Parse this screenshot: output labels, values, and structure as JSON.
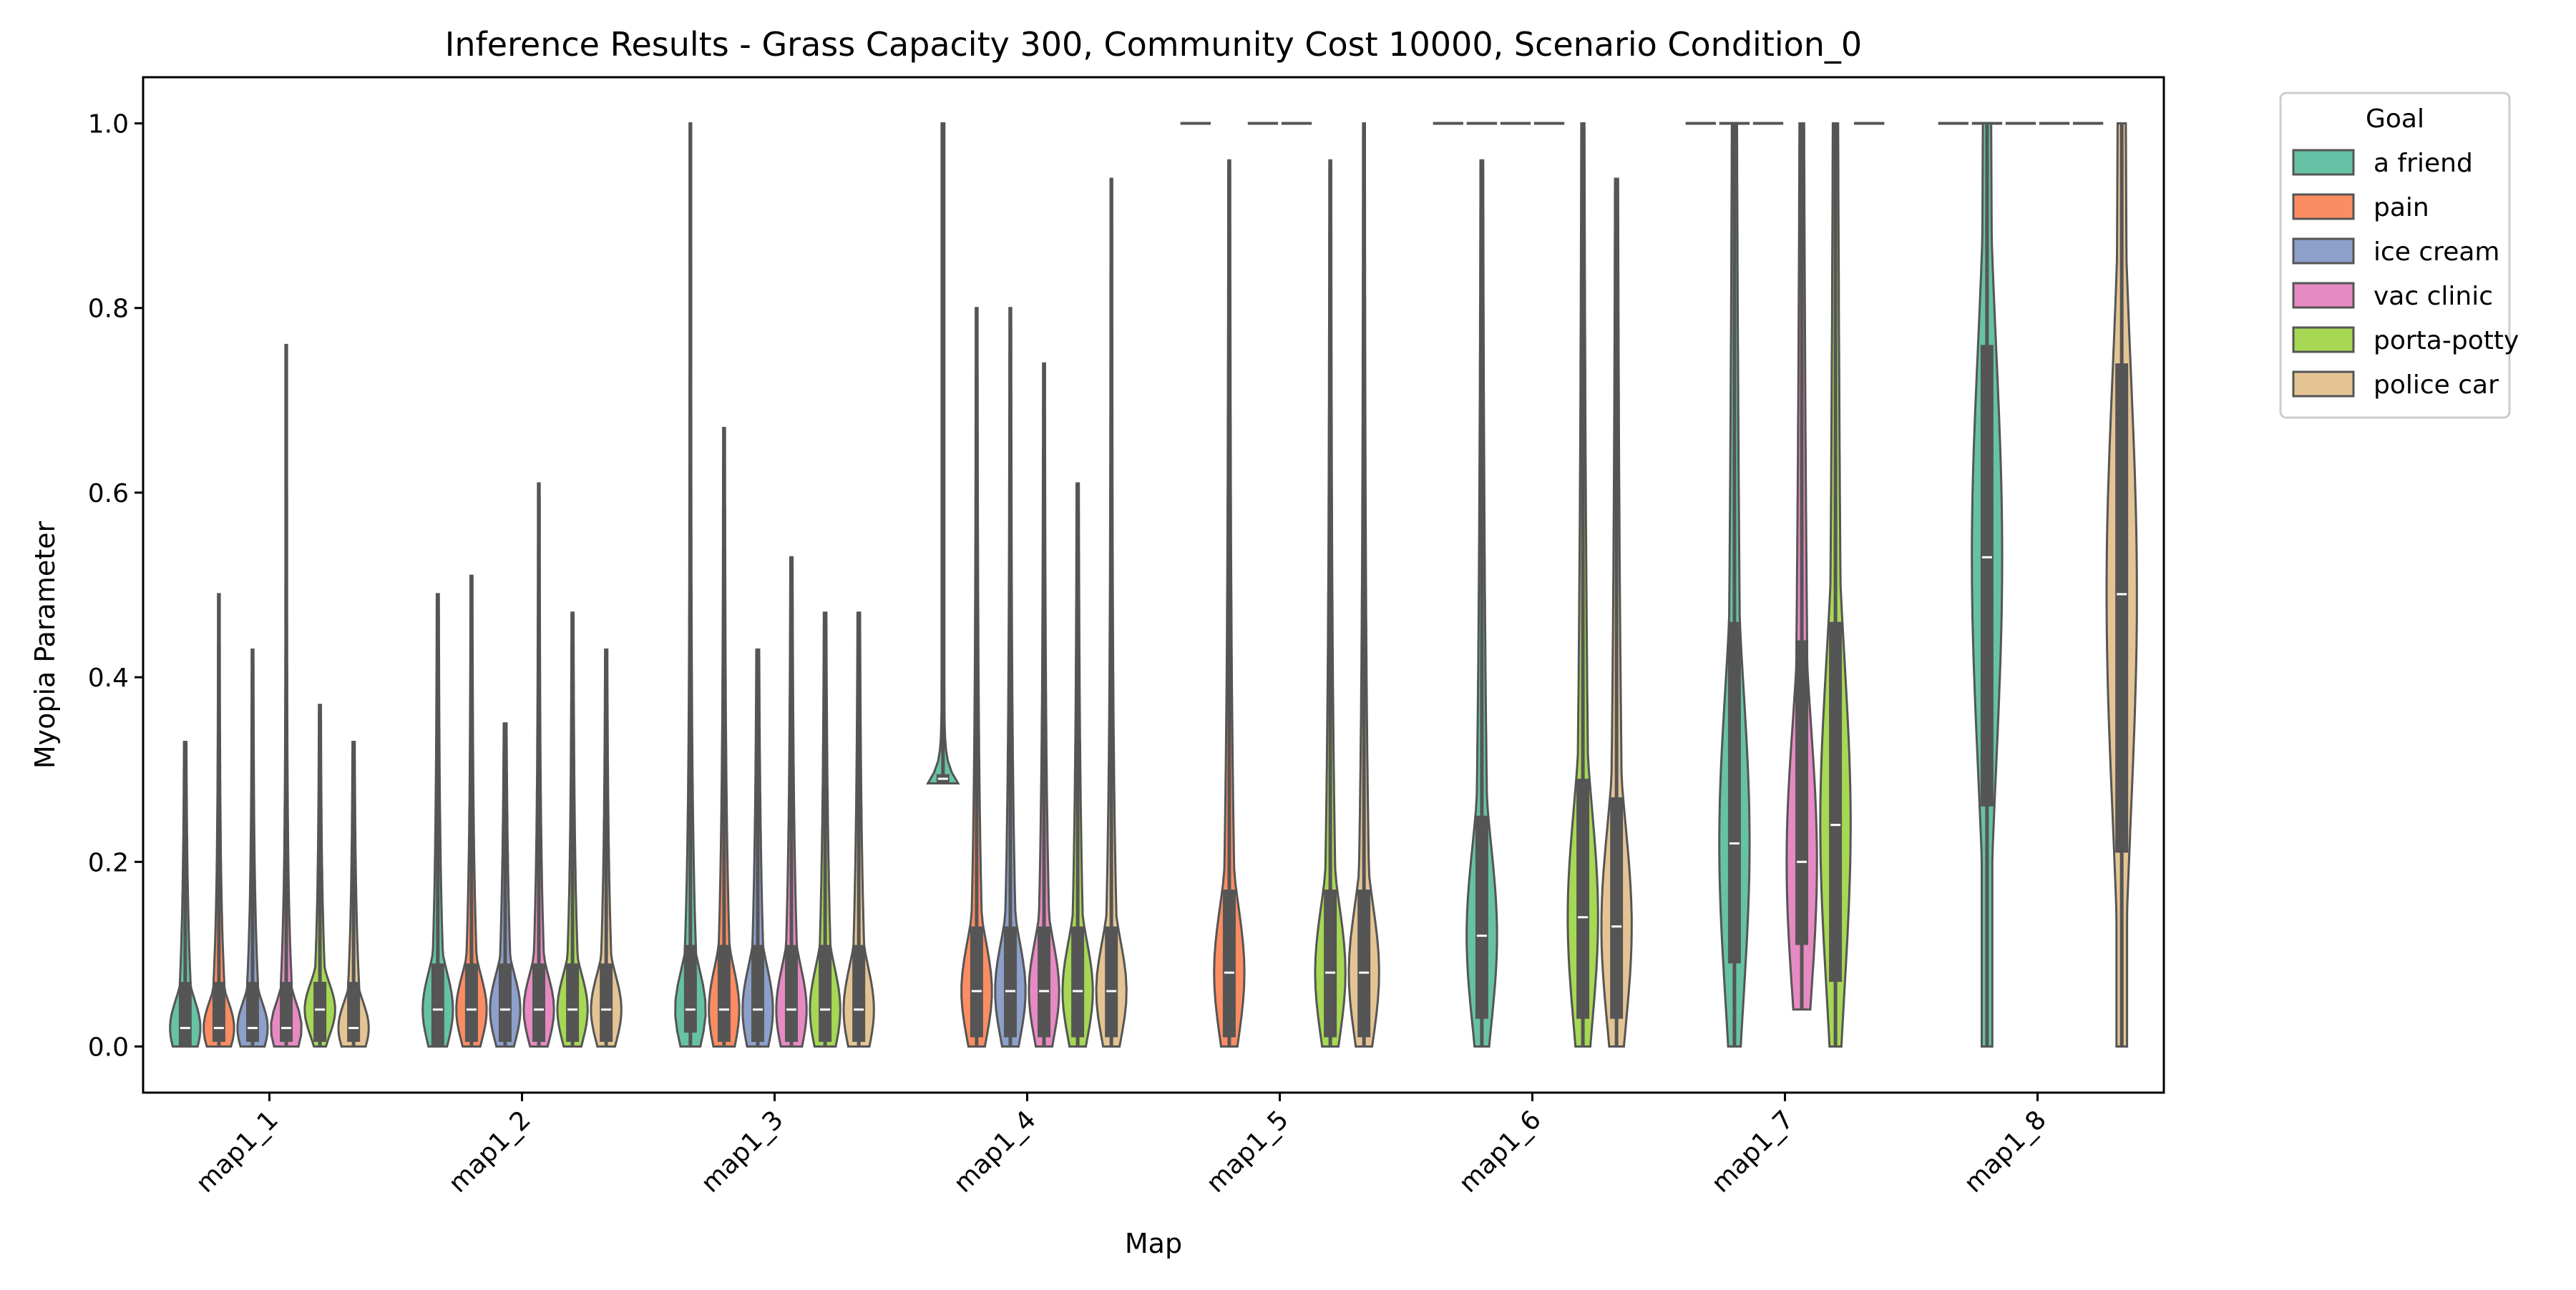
{
  "chart_data": {
    "type": "violin",
    "title": "Inference Results - Grass Capacity 300, Community Cost 10000, Scenario Condition_0",
    "xlabel": "Map",
    "ylabel": "Myopia Parameter",
    "ylim": [
      -0.05,
      1.05
    ],
    "yticks": [
      0.0,
      0.2,
      0.4,
      0.6,
      0.8,
      1.0
    ],
    "ytick_labels": [
      "0.0",
      "0.2",
      "0.4",
      "0.6",
      "0.8",
      "1.0"
    ],
    "categories": [
      "map1_1",
      "map1_2",
      "map1_3",
      "map1_4",
      "map1_5",
      "map1_6",
      "map1_7",
      "map1_8"
    ],
    "grid": false,
    "legend": {
      "title": "Goal",
      "placement": "outside-top-right",
      "entries": [
        "a friend",
        "pain",
        "ice cream",
        "vac clinic",
        "porta-potty",
        "police car"
      ]
    },
    "colors": {
      "a friend": "#66c2a5",
      "pain": "#fc8d62",
      "ice cream": "#8da0cb",
      "vac clinic": "#e78ac3",
      "porta-potty": "#a6d854",
      "police car": "#e5c494",
      "body": "#555555",
      "median": "#ffffff"
    },
    "series": [
      {
        "name": "a friend",
        "values": [
          {
            "min": 0.0,
            "q1": 0.0,
            "median": 0.02,
            "q3": 0.07,
            "max": 0.33
          },
          {
            "min": 0.0,
            "q1": 0.0,
            "median": 0.04,
            "q3": 0.09,
            "max": 0.49
          },
          {
            "min": 0.0,
            "q1": 0.015,
            "median": 0.04,
            "q3": 0.11,
            "max": 1.0
          },
          {
            "min": 0.285,
            "q1": 0.285,
            "median": 0.29,
            "q3": 0.295,
            "max": 1.0
          },
          {
            "min": 1.0,
            "q1": 1.0,
            "median": 1.0,
            "q3": 1.0,
            "max": 1.0
          },
          {
            "min": 1.0,
            "q1": 1.0,
            "median": 1.0,
            "q3": 1.0,
            "max": 1.0
          },
          {
            "min": 1.0,
            "q1": 1.0,
            "median": 1.0,
            "q3": 1.0,
            "max": 1.0
          },
          {
            "min": 1.0,
            "q1": 1.0,
            "median": 1.0,
            "q3": 1.0,
            "max": 1.0
          }
        ]
      },
      {
        "name": "pain",
        "values": [
          {
            "min": 0.0,
            "q1": 0.005,
            "median": 0.02,
            "q3": 0.07,
            "max": 0.49
          },
          {
            "min": 0.0,
            "q1": 0.005,
            "median": 0.04,
            "q3": 0.09,
            "max": 0.51
          },
          {
            "min": 0.0,
            "q1": 0.005,
            "median": 0.04,
            "q3": 0.11,
            "max": 0.67
          },
          {
            "min": 0.0,
            "q1": 0.01,
            "median": 0.06,
            "q3": 0.13,
            "max": 0.8
          },
          {
            "min": 0.0,
            "q1": 0.01,
            "median": 0.08,
            "q3": 0.17,
            "max": 0.96
          },
          {
            "min": 1.0,
            "q1": 1.0,
            "median": 1.0,
            "q3": 1.0,
            "max": 1.0
          },
          {
            "min": 1.0,
            "q1": 1.0,
            "median": 1.0,
            "q3": 1.0,
            "max": 1.0
          },
          {
            "min": 1.0,
            "q1": 1.0,
            "median": 1.0,
            "q3": 1.0,
            "max": 1.0
          }
        ]
      },
      {
        "name": "ice cream",
        "values": [
          {
            "min": 0.0,
            "q1": 0.005,
            "median": 0.02,
            "q3": 0.07,
            "max": 0.43
          },
          {
            "min": 0.0,
            "q1": 0.005,
            "median": 0.04,
            "q3": 0.09,
            "max": 0.35
          },
          {
            "min": 0.0,
            "q1": 0.005,
            "median": 0.04,
            "q3": 0.11,
            "max": 0.43
          },
          {
            "min": 0.0,
            "q1": 0.01,
            "median": 0.06,
            "q3": 0.13,
            "max": 0.8
          },
          {
            "min": 1.0,
            "q1": 1.0,
            "median": 1.0,
            "q3": 1.0,
            "max": 1.0
          },
          {
            "min": 1.0,
            "q1": 1.0,
            "median": 1.0,
            "q3": 1.0,
            "max": 1.0
          },
          {
            "min": 1.0,
            "q1": 1.0,
            "median": 1.0,
            "q3": 1.0,
            "max": 1.0
          },
          {
            "min": 1.0,
            "q1": 1.0,
            "median": 1.0,
            "q3": 1.0,
            "max": 1.0
          }
        ]
      },
      {
        "name": "vac clinic",
        "values": [
          {
            "min": 0.0,
            "q1": 0.005,
            "median": 0.02,
            "q3": 0.07,
            "max": 0.76
          },
          {
            "min": 0.0,
            "q1": 0.005,
            "median": 0.04,
            "q3": 0.09,
            "max": 0.61
          },
          {
            "min": 0.0,
            "q1": 0.005,
            "median": 0.04,
            "q3": 0.11,
            "max": 0.53
          },
          {
            "min": 0.0,
            "q1": 0.01,
            "median": 0.06,
            "q3": 0.13,
            "max": 0.74
          },
          {
            "min": 1.0,
            "q1": 1.0,
            "median": 1.0,
            "q3": 1.0,
            "max": 1.0
          },
          {
            "min": 1.0,
            "q1": 1.0,
            "median": 1.0,
            "q3": 1.0,
            "max": 1.0
          },
          {
            "min": 0.04,
            "q1": 0.11,
            "median": 0.2,
            "q3": 0.44,
            "max": 1.0
          },
          {
            "min": 1.0,
            "q1": 1.0,
            "median": 1.0,
            "q3": 1.0,
            "max": 1.0
          }
        ]
      },
      {
        "name": "porta-potty",
        "values": [
          {
            "min": 0.0,
            "q1": 0.005,
            "median": 0.04,
            "q3": 0.07,
            "max": 0.37
          },
          {
            "min": 0.0,
            "q1": 0.005,
            "median": 0.04,
            "q3": 0.09,
            "max": 0.47
          },
          {
            "min": 0.0,
            "q1": 0.005,
            "median": 0.04,
            "q3": 0.11,
            "max": 0.47
          },
          {
            "min": 0.0,
            "q1": 0.01,
            "median": 0.06,
            "q3": 0.13,
            "max": 0.61
          },
          {
            "min": 0.0,
            "q1": 0.01,
            "median": 0.08,
            "q3": 0.17,
            "max": 0.96
          },
          {
            "min": 0.0,
            "q1": 0.03,
            "median": 0.14,
            "q3": 0.29,
            "max": 1.0
          },
          {
            "min": 0.0,
            "q1": 0.07,
            "median": 0.24,
            "q3": 0.46,
            "max": 1.0
          },
          {
            "min": 1.0,
            "q1": 1.0,
            "median": 1.0,
            "q3": 1.0,
            "max": 1.0
          }
        ]
      },
      {
        "name": "police car",
        "values": [
          {
            "min": 0.0,
            "q1": 0.005,
            "median": 0.02,
            "q3": 0.07,
            "max": 0.33
          },
          {
            "min": 0.0,
            "q1": 0.005,
            "median": 0.04,
            "q3": 0.09,
            "max": 0.43
          },
          {
            "min": 0.0,
            "q1": 0.005,
            "median": 0.04,
            "q3": 0.11,
            "max": 0.47
          },
          {
            "min": 0.0,
            "q1": 0.01,
            "median": 0.06,
            "q3": 0.13,
            "max": 0.94
          },
          {
            "min": 0.0,
            "q1": 0.01,
            "median": 0.08,
            "q3": 0.17,
            "max": 1.0
          },
          {
            "min": 0.0,
            "q1": 0.03,
            "median": 0.13,
            "q3": 0.27,
            "max": 0.94
          },
          {
            "min": 1.0,
            "q1": 1.0,
            "median": 1.0,
            "q3": 1.0,
            "max": 1.0
          },
          {
            "min": 0.0,
            "q1": 0.21,
            "median": 0.49,
            "q3": 0.74,
            "max": 1.0
          }
        ]
      }
    ],
    "extra_groups": [
      {
        "category": "map1_6",
        "name": "a friend",
        "values": {
          "min": 0.0,
          "q1": 0.03,
          "median": 0.12,
          "q3": 0.25,
          "max": 0.96
        }
      },
      {
        "category": "map1_7",
        "name": "a friend",
        "values": {
          "min": 0.0,
          "q1": 0.09,
          "median": 0.22,
          "q3": 0.46,
          "max": 1.0
        }
      },
      {
        "category": "map1_8",
        "name": "a friend",
        "values": {
          "min": 0.0,
          "q1": 0.26,
          "median": 0.53,
          "q3": 0.76,
          "max": 1.0
        }
      }
    ]
  }
}
